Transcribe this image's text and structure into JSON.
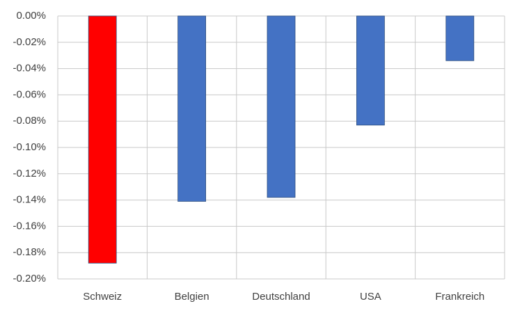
{
  "chart_data": {
    "type": "bar",
    "categories": [
      "Schweiz",
      "Belgien",
      "Deutschland",
      "USA",
      "Frankreich"
    ],
    "values": [
      -0.188,
      -0.141,
      -0.138,
      -0.083,
      -0.034
    ],
    "colors": [
      "#ff0000",
      "#4472c4",
      "#4472c4",
      "#4472c4",
      "#4472c4"
    ],
    "ylim": [
      -0.2,
      0
    ],
    "yticks": [
      {
        "value": 0,
        "label": "0.00%"
      },
      {
        "value": -0.02,
        "label": "-0.02%"
      },
      {
        "value": -0.04,
        "label": "-0.04%"
      },
      {
        "value": -0.06,
        "label": "-0.06%"
      },
      {
        "value": -0.08,
        "label": "-0.08%"
      },
      {
        "value": -0.1,
        "label": "-0.10%"
      },
      {
        "value": -0.12,
        "label": "-0.12%"
      },
      {
        "value": -0.14,
        "label": "-0.14%"
      },
      {
        "value": -0.16,
        "label": "-0.16%"
      },
      {
        "value": -0.18,
        "label": "-0.18%"
      },
      {
        "value": -0.2,
        "label": "-0.20%"
      }
    ],
    "grid": true
  }
}
